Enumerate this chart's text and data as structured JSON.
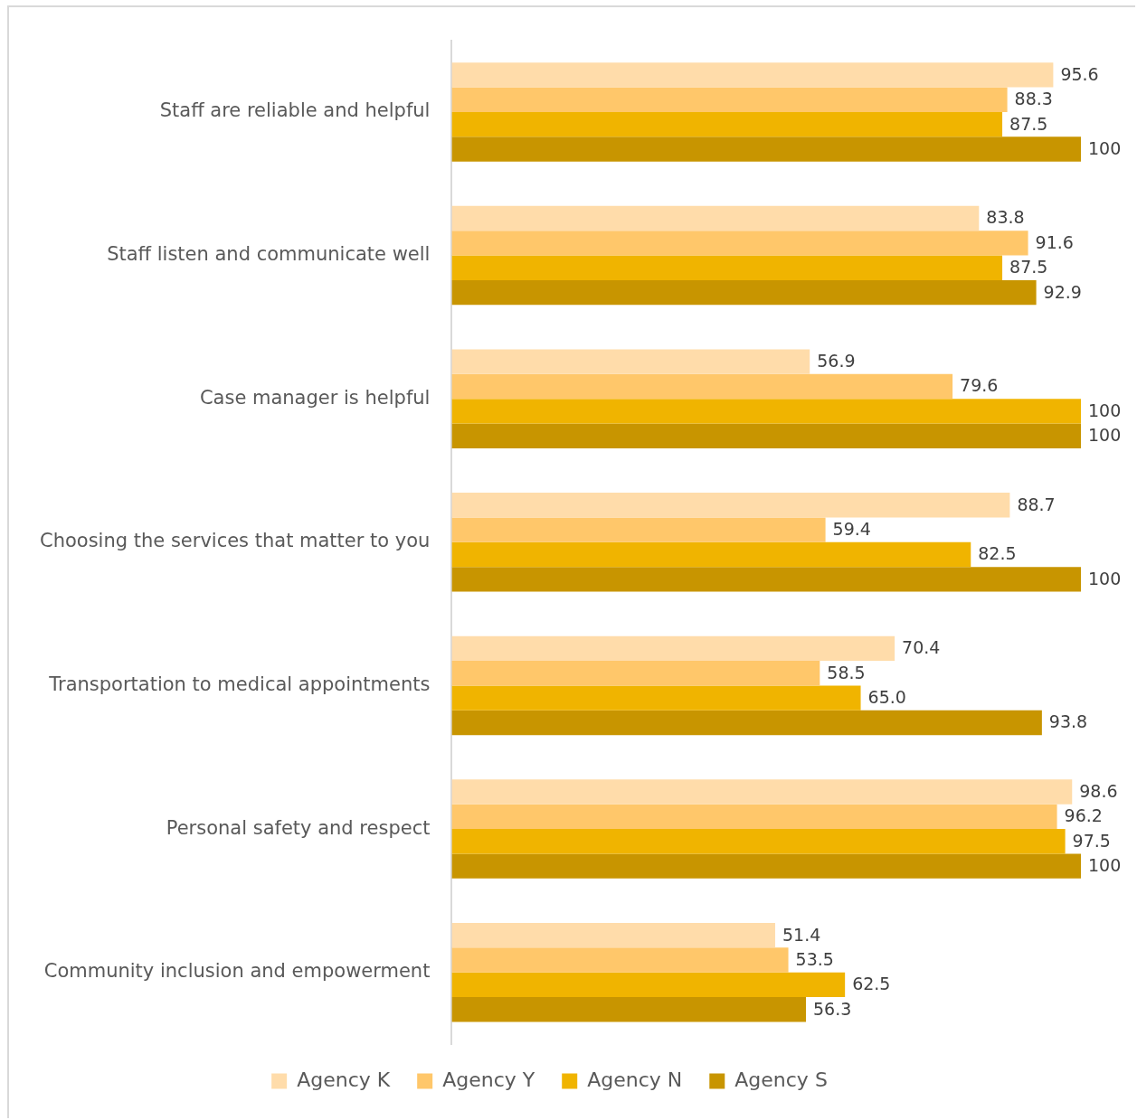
{
  "chart_data": {
    "type": "bar",
    "orientation": "horizontal",
    "legend": "bottom",
    "tick_labels": "y",
    "xlim": [
      0,
      100
    ],
    "categories": [
      "Staff are reliable and helpful",
      "Staff listen and communicate well",
      "Case manager is helpful",
      "Choosing the services that matter to you",
      "Transportation to medical appointments",
      "Personal safety and respect",
      "Community inclusion and empowerment"
    ],
    "series": [
      {
        "name": "Agency K",
        "color": "#ffdcaa",
        "values": [
          95.6,
          83.8,
          56.9,
          88.7,
          70.4,
          98.6,
          51.4
        ],
        "value_labels": [
          "95.6",
          "83.8",
          "56.9",
          "88.7",
          "70.4",
          "98.6",
          "51.4"
        ]
      },
      {
        "name": "Agency Y",
        "color": "#ffc76a",
        "values": [
          88.3,
          91.6,
          79.6,
          59.4,
          58.5,
          96.2,
          53.5
        ],
        "value_labels": [
          "88.3",
          "91.6",
          "79.6",
          "59.4",
          "58.5",
          "96.2",
          "53.5"
        ]
      },
      {
        "name": "Agency N",
        "color": "#f0b400",
        "values": [
          87.5,
          87.5,
          100,
          82.5,
          65.0,
          97.5,
          62.5
        ],
        "value_labels": [
          "87.5",
          "87.5",
          "100",
          "82.5",
          "65.0",
          "97.5",
          "62.5"
        ]
      },
      {
        "name": "Agency S",
        "color": "#c89500",
        "values": [
          100,
          92.9,
          100,
          100,
          93.8,
          100,
          56.3
        ],
        "value_labels": [
          "100",
          "92.9",
          "100",
          "100",
          "93.8",
          "100",
          "56.3"
        ]
      }
    ]
  }
}
